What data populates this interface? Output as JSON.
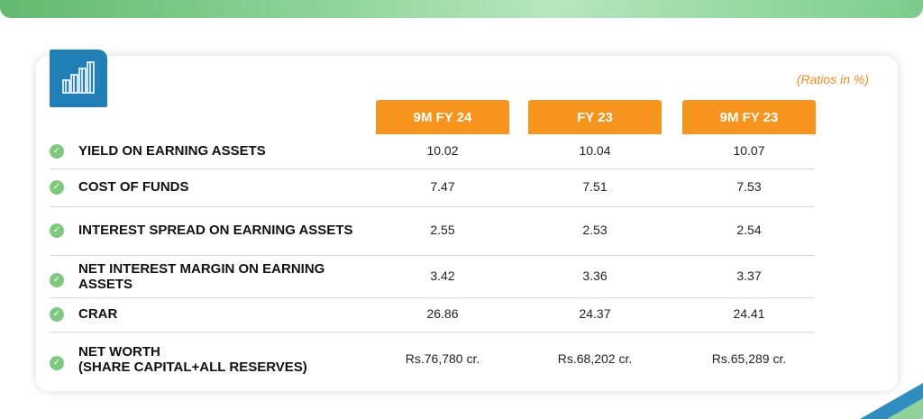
{
  "note": "(Ratios in %)",
  "columns": [
    "9M FY 24",
    "FY 23",
    "9M FY 23"
  ],
  "rows": [
    {
      "label": "YIELD ON EARNING ASSETS",
      "values": [
        "10.02",
        "10.04",
        "10.07"
      ]
    },
    {
      "label": "COST OF FUNDS",
      "values": [
        "7.47",
        "7.51",
        "7.53"
      ]
    },
    {
      "label": "INTEREST SPREAD ON EARNING ASSETS",
      "values": [
        "2.55",
        "2.53",
        "2.54"
      ]
    },
    {
      "label": "NET INTEREST MARGIN ON EARNING ASSETS",
      "values": [
        "3.42",
        "3.36",
        "3.37"
      ]
    },
    {
      "label": "CRAR",
      "values": [
        "26.86",
        "24.37",
        "24.41"
      ]
    },
    {
      "label": "NET WORTH\n(SHARE CAPITAL+ALL RESERVES)",
      "values": [
        "Rs.76,780 cr.",
        "Rs.68,202 cr.",
        "Rs.65,289 cr."
      ]
    }
  ],
  "colors": {
    "accent": "#f7941d",
    "check": "#7fc87f",
    "logo_bg": "#1f7fb6",
    "note": "#ef8a1c"
  },
  "icons": {
    "logo": "bar-chart-icon",
    "row_marker": "check-circle-icon"
  }
}
